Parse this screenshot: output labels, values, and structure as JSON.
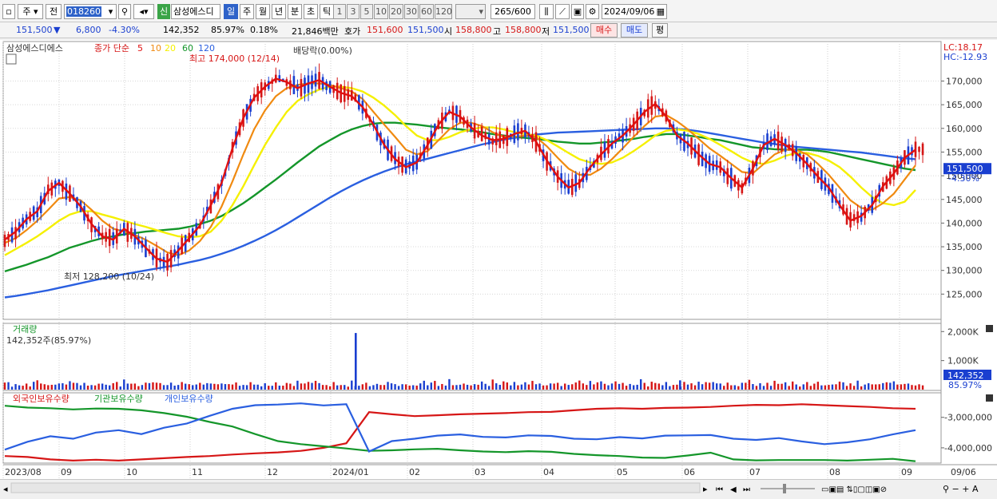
{
  "toolbar": {
    "period_unit": "주",
    "prev_label": "전",
    "stock_code": "018260",
    "credit_badge": "신",
    "stock_name": "삼성에스디",
    "period_buttons": [
      "일",
      "주",
      "월",
      "년",
      "분",
      "초",
      "틱"
    ],
    "interval_buttons": [
      "1",
      "3",
      "5",
      "10",
      "20",
      "30",
      "60",
      "120"
    ],
    "count": "265",
    "count_total": "/600",
    "date": "2024/09/06"
  },
  "infobar": {
    "price": "151,500",
    "change": "6,800",
    "change_pct": "-4.30%",
    "volume": "142,352",
    "vol_ratio": "85.97%",
    "turnover": "0.18%",
    "amount": "21,846백만",
    "ask_label": "호가",
    "ask1": "151,600",
    "ask2": "151,500",
    "open_label": "시",
    "open": "158,800",
    "high_label": "고",
    "high": "158,800",
    "low_label": "저",
    "low": "151,500",
    "buy_label": "매수",
    "sell_label": "매도",
    "eval_label": "평"
  },
  "colors": {
    "up": "#d61616",
    "down": "#1a3fd0",
    "ma5": "#e01010",
    "ma10": "#f08a10",
    "ma20": "#f5f000",
    "ma60": "#14962a",
    "ma120": "#2a5fe0"
  },
  "chart_data": [
    {
      "type": "candlestick",
      "title": "삼성에스디에스",
      "legend": [
        "종가 단순",
        "5",
        "10",
        "20",
        "60",
        "120"
      ],
      "ylim": [
        120000,
        177000
      ],
      "y_ticks": [
        "170,000",
        "165,000",
        "160,000",
        "155,000",
        "150,000",
        "145,000",
        "140,000",
        "135,000",
        "130,000",
        "125,000"
      ],
      "x_ticks": [
        "2023/08",
        "09",
        "10",
        "11",
        "12",
        "2024/01",
        "02",
        "03",
        "04",
        "05",
        "06",
        "07",
        "08",
        "09",
        "09/06"
      ],
      "annotations": {
        "high": "최고 174,000 (12/14)",
        "low": "최저 128,200 (10/24)",
        "dividend": "배당락(0.00%)"
      },
      "lc": "LC:18.17",
      "hc": "HC:-12.93",
      "last_price": "151,500",
      "last_pct": "-4.30%",
      "ma5": [
        136500,
        138200,
        140800,
        142500,
        146800,
        148500,
        146200,
        143500,
        139800,
        137200,
        136500,
        138800,
        137200,
        134800,
        132500,
        131800,
        134200,
        136800,
        139500,
        143800,
        148500,
        155800,
        162200,
        166500,
        168800,
        170500,
        169800,
        168500,
        169500,
        170200,
        168800,
        167500,
        166800,
        164500,
        160800,
        156500,
        153500,
        151800,
        152800,
        156500,
        160800,
        163500,
        162500,
        160200,
        158500,
        157500,
        157800,
        158800,
        159500,
        157200,
        153200,
        149800,
        147500,
        148500,
        151800,
        154500,
        156800,
        158500,
        160800,
        163500,
        165200,
        162500,
        158500,
        156800,
        154500,
        152500,
        151800,
        149500,
        147500,
        151500,
        156500,
        157800,
        156500,
        154800,
        152500,
        149800,
        147500,
        143800,
        140500,
        141500,
        143800,
        147800,
        150500,
        153800,
        155500
      ],
      "ma10": [
        135800,
        136800,
        138500,
        140500,
        142800,
        145200,
        145500,
        144800,
        142800,
        140500,
        138800,
        138200,
        137500,
        136500,
        135200,
        133800,
        133200,
        134200,
        136200,
        139200,
        143500,
        148800,
        154500,
        159800,
        163800,
        166800,
        168500,
        169200,
        169500,
        169500,
        169200,
        168500,
        167800,
        166200,
        163500,
        160800,
        158200,
        155500,
        154500,
        155200,
        157500,
        159800,
        161200,
        161200,
        160500,
        159200,
        158200,
        158200,
        158500,
        158200,
        156200,
        153800,
        151500,
        150200,
        150200,
        151500,
        153500,
        155800,
        158200,
        160500,
        162500,
        162800,
        161500,
        159800,
        157800,
        155800,
        154200,
        152500,
        150800,
        150500,
        152500,
        154500,
        155500,
        155500,
        154500,
        152500,
        150200,
        147500,
        144800,
        143200,
        142800,
        144200,
        146200,
        149200,
        152200
      ],
      "ma20": [
        133200,
        134500,
        135800,
        137200,
        138800,
        140500,
        141800,
        142500,
        142500,
        141800,
        141200,
        140500,
        139800,
        139200,
        138500,
        137800,
        137200,
        137000,
        137200,
        138200,
        140500,
        143800,
        147800,
        152200,
        156500,
        160200,
        163500,
        165800,
        167200,
        168200,
        168800,
        168800,
        168500,
        167800,
        166500,
        164800,
        162800,
        160500,
        158500,
        157500,
        157500,
        158200,
        159200,
        159800,
        160200,
        160200,
        159800,
        159200,
        158800,
        158500,
        157500,
        156200,
        154800,
        153500,
        152800,
        152500,
        152800,
        153800,
        155200,
        156800,
        158500,
        159500,
        159800,
        159500,
        158800,
        157800,
        156500,
        155200,
        153800,
        152800,
        152500,
        153200,
        154200,
        154800,
        154800,
        154200,
        153200,
        151800,
        149800,
        147500,
        145500,
        144200,
        143800,
        144500,
        147000
      ],
      "ma60": [
        129800,
        130500,
        131200,
        132000,
        132800,
        133800,
        134800,
        135500,
        136200,
        136800,
        137200,
        137600,
        137900,
        138200,
        138400,
        138600,
        138800,
        139200,
        139800,
        140500,
        141500,
        142800,
        144200,
        145800,
        147500,
        149200,
        151000,
        152800,
        154500,
        156200,
        157500,
        158800,
        159800,
        160500,
        161000,
        161200,
        161200,
        161000,
        160800,
        160500,
        160200,
        160000,
        159800,
        159500,
        159200,
        158800,
        158500,
        158200,
        158000,
        157800,
        157500,
        157200,
        157000,
        156800,
        156800,
        157000,
        157200,
        157500,
        157800,
        158200,
        158500,
        158800,
        158800,
        158500,
        158200,
        157800,
        157500,
        157000,
        156500,
        156000,
        155800,
        155600,
        155500,
        155500,
        155500,
        155300,
        155000,
        154500,
        154000,
        153500,
        153000,
        152500,
        152000,
        151500,
        151200
      ],
      "ma120": [
        124300,
        124600,
        125000,
        125400,
        125800,
        126300,
        126800,
        127300,
        127800,
        128300,
        128800,
        129200,
        129600,
        130000,
        130400,
        130800,
        131200,
        131700,
        132200,
        132800,
        133500,
        134300,
        135200,
        136200,
        137300,
        138500,
        139800,
        141200,
        142600,
        144000,
        145400,
        146700,
        147900,
        149000,
        150000,
        150900,
        151700,
        152400,
        153000,
        153600,
        154200,
        154800,
        155400,
        156000,
        156600,
        157100,
        157600,
        158000,
        158400,
        158700,
        158900,
        159100,
        159200,
        159300,
        159400,
        159500,
        159600,
        159700,
        159800,
        159900,
        160000,
        160000,
        159900,
        159700,
        159400,
        159000,
        158600,
        158200,
        157800,
        157400,
        157000,
        156700,
        156400,
        156100,
        155900,
        155700,
        155500,
        155300,
        155100,
        154900,
        154600,
        154300,
        154000,
        153700,
        153500
      ]
    },
    {
      "type": "bar",
      "title": "거래량",
      "subtitle": "142,352주(85.97%)",
      "y_ticks": [
        "2,000K",
        "1,000K"
      ],
      "ylim": [
        0,
        2200
      ],
      "last_value": "142,352",
      "last_pct": "85.97%",
      "spike_index": 47,
      "spike_value": 1950,
      "spike2_index": 90,
      "spike2_value": 320,
      "base_values": [
        180,
        210,
        150,
        260,
        190,
        170,
        230,
        160,
        200,
        240,
        175,
        185,
        220,
        165,
        205,
        250,
        190,
        160,
        230,
        210,
        180,
        245,
        200,
        170,
        215,
        190,
        260,
        185,
        175,
        220
      ]
    },
    {
      "type": "line",
      "legend": [
        "외국인보유수량",
        "기관보유수량",
        "개인보유수량"
      ],
      "y_ticks": [
        "-3,000,000",
        "-4,000,000"
      ],
      "ylim": [
        -4500000,
        -2300000
      ],
      "series": [
        {
          "name": "외국인보유수량",
          "color": "#d61616",
          "values": [
            -4270000,
            -4300000,
            -4380000,
            -4420000,
            -4390000,
            -4420000,
            -4380000,
            -4340000,
            -4300000,
            -4270000,
            -4220000,
            -4180000,
            -4150000,
            -4100000,
            -4000000,
            -3850000,
            -2830000,
            -2900000,
            -2960000,
            -2930000,
            -2900000,
            -2880000,
            -2860000,
            -2830000,
            -2820000,
            -2770000,
            -2720000,
            -2700000,
            -2720000,
            -2690000,
            -2680000,
            -2660000,
            -2620000,
            -2590000,
            -2600000,
            -2570000,
            -2600000,
            -2630000,
            -2660000,
            -2700000,
            -2720000
          ]
        },
        {
          "name": "기관보유수량",
          "color": "#14962a",
          "values": [
            -2620000,
            -2680000,
            -2700000,
            -2740000,
            -2710000,
            -2720000,
            -2770000,
            -2860000,
            -2980000,
            -3150000,
            -3300000,
            -3550000,
            -3780000,
            -3880000,
            -3950000,
            -4020000,
            -4100000,
            -4080000,
            -4050000,
            -4030000,
            -4080000,
            -4120000,
            -4140000,
            -4110000,
            -4130000,
            -4200000,
            -4240000,
            -4270000,
            -4320000,
            -4330000,
            -4250000,
            -4160000,
            -4380000,
            -4410000,
            -4400000,
            -4400000,
            -4400000,
            -4420000,
            -4390000,
            -4360000,
            -4440000
          ]
        },
        {
          "name": "개인보유수량",
          "color": "#2a5fe0",
          "values": [
            -4060000,
            -3800000,
            -3620000,
            -3700000,
            -3500000,
            -3420000,
            -3550000,
            -3340000,
            -3200000,
            -2950000,
            -2720000,
            -2600000,
            -2580000,
            -2540000,
            -2610000,
            -2570000,
            -4120000,
            -3780000,
            -3700000,
            -3600000,
            -3560000,
            -3640000,
            -3660000,
            -3590000,
            -3610000,
            -3700000,
            -3720000,
            -3650000,
            -3690000,
            -3600000,
            -3590000,
            -3580000,
            -3700000,
            -3740000,
            -3680000,
            -3790000,
            -3880000,
            -3820000,
            -3720000,
            -3560000,
            -3420000
          ]
        }
      ]
    }
  ]
}
